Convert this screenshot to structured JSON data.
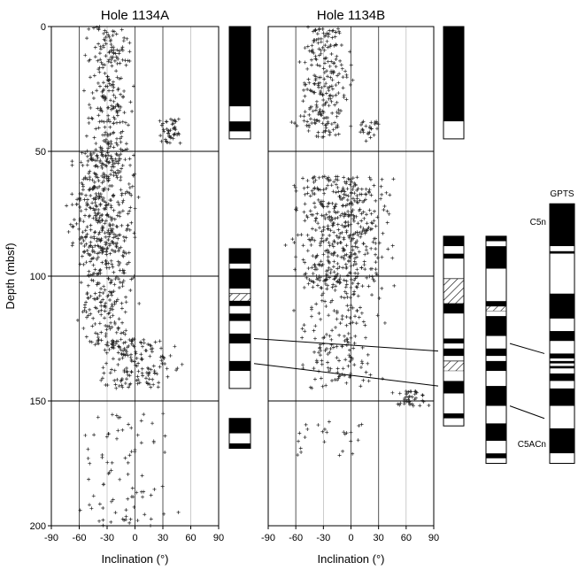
{
  "chart_data": [
    {
      "type": "scatter",
      "title": "Hole 1134A",
      "xlabel": "Inclination (°)",
      "ylabel": "Depth (mbsf)",
      "xlim": [
        -90,
        90
      ],
      "ylim": [
        0,
        200
      ],
      "y_reversed": true,
      "x_ticks": [
        "-90",
        "-60",
        "-30",
        "0",
        "30",
        "60",
        "90"
      ],
      "y_ticks": [
        "0",
        "50",
        "100",
        "150",
        "200"
      ],
      "marker": "plus",
      "clusters": [
        {
          "depth_range": [
            0,
            48
          ],
          "inclination_range": [
            -60,
            5
          ],
          "count": 220
        },
        {
          "depth_range": [
            37,
            47
          ],
          "inclination_range": [
            20,
            55
          ],
          "count": 45
        },
        {
          "depth_range": [
            48,
            92
          ],
          "inclination_range": [
            -80,
            10
          ],
          "count": 420
        },
        {
          "depth_range": [
            92,
            128
          ],
          "inclination_range": [
            -75,
            10
          ],
          "count": 190
        },
        {
          "depth_range": [
            125,
            145
          ],
          "inclination_range": [
            -60,
            60
          ],
          "count": 160
        },
        {
          "depth_range": [
            155,
            200
          ],
          "inclination_range": [
            -90,
            80
          ],
          "count": 85
        }
      ]
    },
    {
      "type": "scatter",
      "title": "Hole 1134B",
      "xlabel": "Inclination (°)",
      "ylabel": "",
      "xlim": [
        -90,
        90
      ],
      "ylim": [
        0,
        200
      ],
      "y_reversed": true,
      "x_ticks": [
        "-90",
        "-60",
        "-30",
        "0",
        "30",
        "60",
        "90"
      ],
      "marker": "plus",
      "clusters": [
        {
          "depth_range": [
            0,
            45
          ],
          "inclination_range": [
            -70,
            10
          ],
          "count": 240
        },
        {
          "depth_range": [
            38,
            46
          ],
          "inclination_range": [
            0,
            40
          ],
          "count": 25
        },
        {
          "depth_range": [
            60,
            105
          ],
          "inclination_range": [
            -80,
            60
          ],
          "count": 500
        },
        {
          "depth_range": [
            105,
            145
          ],
          "inclination_range": [
            -75,
            45
          ],
          "count": 160
        },
        {
          "depth_range": [
            146,
            152
          ],
          "inclination_range": [
            40,
            90
          ],
          "count": 40
        },
        {
          "depth_range": [
            158,
            172
          ],
          "inclination_range": [
            -80,
            30
          ],
          "count": 25
        }
      ]
    }
  ],
  "polarity_columns": {
    "hole_a_upper": {
      "range": [
        0,
        45
      ],
      "blocks": [
        [
          0,
          32,
          "normal"
        ],
        [
          32,
          38,
          "reversed"
        ],
        [
          38,
          42,
          "normal"
        ],
        [
          42,
          45,
          "reversed"
        ]
      ]
    },
    "hole_a_middle": {
      "range": [
        89,
        145
      ],
      "blocks": [
        [
          89,
          95,
          "normal"
        ],
        [
          95,
          97,
          "reversed"
        ],
        [
          97,
          105,
          "normal"
        ],
        [
          105,
          107,
          "reversed"
        ],
        [
          107,
          110,
          "hatched"
        ],
        [
          110,
          112,
          "normal"
        ],
        [
          112,
          115,
          "reversed"
        ],
        [
          115,
          118,
          "normal"
        ],
        [
          118,
          123,
          "reversed"
        ],
        [
          123,
          127,
          "normal"
        ],
        [
          127,
          134,
          "reversed"
        ],
        [
          134,
          138,
          "normal"
        ],
        [
          138,
          145,
          "reversed"
        ]
      ]
    },
    "hole_a_lower": {
      "range": [
        157,
        169
      ],
      "blocks": [
        [
          157,
          163,
          "normal"
        ],
        [
          163,
          167,
          "reversed"
        ],
        [
          167,
          169,
          "normal"
        ]
      ]
    },
    "hole_b_upper": {
      "range": [
        0,
        45
      ],
      "blocks": [
        [
          0,
          38,
          "normal"
        ],
        [
          38,
          45,
          "reversed"
        ]
      ]
    },
    "hole_b_lower": {
      "range": [
        84,
        160
      ],
      "blocks": [
        [
          84,
          88,
          "normal"
        ],
        [
          88,
          91,
          "reversed"
        ],
        [
          91,
          93,
          "normal"
        ],
        [
          93,
          101,
          "reversed"
        ],
        [
          101,
          111,
          "hatched"
        ],
        [
          111,
          115,
          "normal"
        ],
        [
          115,
          125,
          "reversed"
        ],
        [
          125,
          127,
          "normal"
        ],
        [
          127,
          129,
          "reversed"
        ],
        [
          129,
          132,
          "normal"
        ],
        [
          132,
          134,
          "reversed"
        ],
        [
          134,
          138,
          "hatched"
        ],
        [
          138,
          142,
          "reversed"
        ],
        [
          142,
          147,
          "normal"
        ],
        [
          147,
          155,
          "reversed"
        ],
        [
          155,
          157,
          "normal"
        ],
        [
          157,
          160,
          "reversed"
        ]
      ]
    },
    "composite": {
      "range": [
        84,
        175
      ],
      "blocks": [
        [
          84,
          86,
          "normal"
        ],
        [
          86,
          88,
          "reversed"
        ],
        [
          88,
          97,
          "normal"
        ],
        [
          97,
          110,
          "reversed"
        ],
        [
          110,
          112,
          "normal"
        ],
        [
          112,
          114,
          "hatched"
        ],
        [
          114,
          116,
          "reversed"
        ],
        [
          116,
          124,
          "normal"
        ],
        [
          124,
          129,
          "reversed"
        ],
        [
          129,
          132,
          "normal"
        ],
        [
          132,
          134,
          "reversed"
        ],
        [
          134,
          138,
          "normal"
        ],
        [
          138,
          144,
          "reversed"
        ],
        [
          144,
          152,
          "normal"
        ],
        [
          152,
          155,
          "reversed"
        ],
        [
          155,
          157,
          "reversed"
        ],
        [
          157,
          159,
          "reversed"
        ],
        [
          159,
          166,
          "normal"
        ],
        [
          166,
          171,
          "reversed"
        ],
        [
          171,
          173,
          "normal"
        ],
        [
          173,
          175,
          "reversed"
        ]
      ]
    },
    "gpts": {
      "label": "GPTS",
      "range": [
        71,
        175
      ],
      "blocks": [
        [
          71,
          88,
          "normal"
        ],
        [
          88,
          90,
          "reversed"
        ],
        [
          90,
          91,
          "normal"
        ],
        [
          91,
          107,
          "reversed"
        ],
        [
          107,
          117,
          "normal"
        ],
        [
          117,
          122,
          "reversed"
        ],
        [
          122,
          126,
          "normal"
        ],
        [
          126,
          131,
          "reversed"
        ],
        [
          131,
          133,
          "normal"
        ],
        [
          133,
          134,
          "reversed"
        ],
        [
          134,
          135,
          "normal"
        ],
        [
          135,
          136,
          "reversed"
        ],
        [
          136,
          137,
          "normal"
        ],
        [
          137,
          139,
          "reversed"
        ],
        [
          139,
          142,
          "normal"
        ],
        [
          142,
          145,
          "reversed"
        ],
        [
          145,
          152,
          "normal"
        ],
        [
          152,
          161,
          "reversed"
        ],
        [
          161,
          171,
          "normal"
        ],
        [
          171,
          175,
          "reversed"
        ]
      ],
      "labels": [
        {
          "text": "C5n",
          "depth": 78
        },
        {
          "text": "C5ACn",
          "depth": 167
        }
      ]
    }
  },
  "correlation_lines": [
    {
      "from": "hole_a_middle",
      "to": "hole_b_lower",
      "from_depth": 125,
      "to_depth": 130
    },
    {
      "from": "hole_a_middle",
      "to": "hole_b_lower",
      "from_depth": 135,
      "to_depth": 144
    },
    {
      "from": "composite",
      "to": "gpts",
      "from_depth": 127,
      "to_depth": 131
    },
    {
      "from": "composite",
      "to": "gpts",
      "from_depth": 152,
      "to_depth": 157
    }
  ]
}
